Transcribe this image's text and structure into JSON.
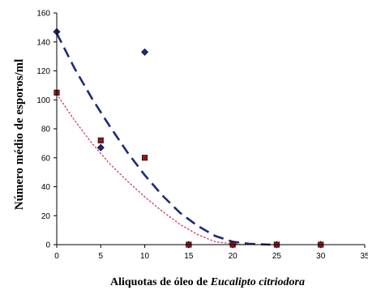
{
  "chart_data": {
    "type": "scatter",
    "xlabel_prefix": "Aliquotas de óleo de ",
    "xlabel_italic": "Eucalipto citriodora",
    "ylabel": "Número médio de esporos/ml",
    "xlim": [
      0,
      35
    ],
    "ylim": [
      0,
      160
    ],
    "x_ticks": [
      "0",
      "5",
      "10",
      "15",
      "20",
      "25",
      "30",
      "35"
    ],
    "y_ticks": [
      "0",
      "20",
      "40",
      "60",
      "80",
      "100",
      "120",
      "140",
      "160"
    ],
    "grid": false,
    "legend": "none",
    "series": [
      {
        "marker": "diamond",
        "color": "#1f2a7a",
        "x": [
          0,
          5,
          10,
          15,
          20,
          25,
          30
        ],
        "y": [
          147,
          67,
          133,
          0,
          0,
          0,
          0
        ],
        "trendline": {
          "style": "dashed",
          "color": "#1f2a7a",
          "x": [
            0,
            2,
            4,
            6,
            8,
            10,
            12,
            14,
            16,
            18,
            20,
            22,
            24.3
          ],
          "y": [
            146,
            122,
            101,
            82,
            64,
            48,
            34,
            22,
            13,
            6,
            2,
            0.5,
            0
          ]
        }
      },
      {
        "marker": "square",
        "color": "#8b1a1a",
        "x": [
          0,
          5,
          10,
          15,
          20,
          25,
          30
        ],
        "y": [
          105,
          72,
          60,
          0,
          0,
          0,
          0
        ],
        "trendline": {
          "style": "dotted",
          "color": "#cc3a5a",
          "x": [
            0,
            2,
            4,
            6,
            8,
            10,
            12,
            14,
            16,
            18,
            20,
            21.5
          ],
          "y": [
            104,
            86,
            70,
            56,
            44,
            33,
            23,
            14,
            7,
            2,
            0.5,
            0
          ]
        }
      }
    ]
  }
}
